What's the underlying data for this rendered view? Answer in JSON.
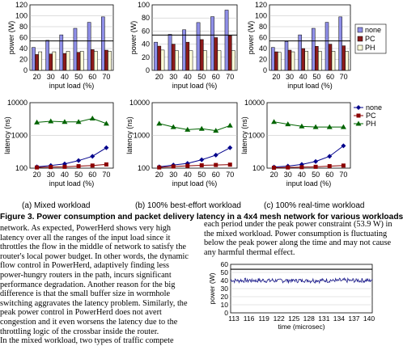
{
  "colors": {
    "none": "#8f8fe8",
    "pc": "#8b1a1a",
    "ph": "#fefcd8"
  },
  "legend": [
    "none",
    "PC",
    "PH"
  ],
  "captions": [
    "(a) Mixed workload",
    "(b) 100% best-effort workload",
    "(c) 100% real-time workload"
  ],
  "figure_caption": "Figure 3. Power consumption and packet delivery latency in a 4x4 mesh network for various workloads",
  "left_text": [
    "network. As expected, PowerHerd shows very high",
    "latency over all the ranges of the input load since it",
    "throttles the flow in the middle of network to satisfy the",
    "router's local power budget. In other words, the dynamic",
    "flow control in PowerHerd, adaptively finding less",
    "power-hungry routers in the path, incurs significant",
    "performance degradation. Another reason for the big",
    "difference is that the small buffer size in wormhole",
    "switching aggravates the latency problem. Similarly, the",
    "peak power control in PowerHerd does not avert",
    "congestion and it even worsens the latency due to the",
    "throttling logic of the crossbar inside the router.",
    "   In the mixed workload, two types of traffic compete"
  ],
  "right_text": [
    "each period under the peak power constraint (53.9 W) in",
    "the mixed workload. Power consumption is fluctuating",
    "below the peak power along the time and may not cause",
    "any harmful thermal effect."
  ],
  "chart_data": [
    {
      "type": "bar",
      "title": "",
      "xlabel": "input load (%)",
      "ylabel": "power (W)",
      "categories": [
        "20",
        "30",
        "40",
        "50",
        "60",
        "70"
      ],
      "ylim": [
        0,
        120
      ],
      "yticks": [
        "0",
        "20",
        "40",
        "60",
        "80",
        "100",
        "120"
      ],
      "hline": 53.9,
      "series": [
        {
          "name": "none",
          "values": [
            42,
            55,
            65,
            77,
            88,
            98
          ]
        },
        {
          "name": "PC",
          "values": [
            29,
            30,
            31,
            33,
            38,
            37
          ]
        },
        {
          "name": "PH",
          "values": [
            34,
            34,
            35,
            35,
            35,
            35
          ]
        }
      ]
    },
    {
      "type": "bar",
      "title": "",
      "xlabel": "input load (%)",
      "ylabel": "power (W)",
      "categories": [
        "20",
        "30",
        "40",
        "50",
        "60",
        "70"
      ],
      "ylim": [
        0,
        100
      ],
      "yticks": [
        "0",
        "20",
        "40",
        "60",
        "80",
        "100"
      ],
      "hline": 53.9,
      "series": [
        {
          "name": "none",
          "values": [
            43,
            55,
            62,
            73,
            82,
            92
          ]
        },
        {
          "name": "PC",
          "values": [
            37,
            40,
            43,
            47,
            50,
            53
          ]
        },
        {
          "name": "PH",
          "values": [
            31,
            30,
            30,
            30,
            30,
            30
          ]
        }
      ]
    },
    {
      "type": "bar",
      "title": "",
      "xlabel": "input load (%)",
      "ylabel": "power (W)",
      "categories": [
        "20",
        "30",
        "40",
        "50",
        "60",
        "70"
      ],
      "ylim": [
        0,
        120
      ],
      "yticks": [
        "0",
        "20",
        "40",
        "60",
        "80",
        "100",
        "120"
      ],
      "hline": 53.9,
      "legend": [
        "none",
        "PC",
        "PH"
      ],
      "series": [
        {
          "name": "none",
          "values": [
            42,
            53,
            65,
            77,
            88,
            98
          ]
        },
        {
          "name": "PC",
          "values": [
            34,
            37,
            40,
            44,
            48,
            45
          ]
        },
        {
          "name": "PH",
          "values": [
            33,
            34,
            35,
            35,
            35,
            35
          ]
        }
      ]
    },
    {
      "type": "line",
      "xlabel": "input load (%)",
      "ylabel": "latency (ns)",
      "log_y": true,
      "categories": [
        "20",
        "30",
        "40",
        "50",
        "60",
        "70"
      ],
      "ylim": [
        100,
        10000
      ],
      "yticks": [
        "100",
        "1000",
        "10000"
      ],
      "series": [
        {
          "name": "none",
          "values": [
            110,
            120,
            135,
            170,
            230,
            420
          ]
        },
        {
          "name": "PC",
          "values": [
            105,
            108,
            110,
            115,
            120,
            130
          ]
        },
        {
          "name": "PH",
          "values": [
            2500,
            2700,
            2600,
            2600,
            3300,
            2300
          ]
        }
      ]
    },
    {
      "type": "line",
      "xlabel": "input load (%)",
      "ylabel": "latency (ns)",
      "log_y": true,
      "categories": [
        "20",
        "30",
        "40",
        "50",
        "60",
        "70"
      ],
      "ylim": [
        100,
        10000
      ],
      "yticks": [
        "100",
        "1000",
        "10000"
      ],
      "series": [
        {
          "name": "none",
          "values": [
            110,
            125,
            140,
            180,
            250,
            420
          ]
        },
        {
          "name": "PC",
          "values": [
            105,
            112,
            118,
            122,
            125,
            128
          ]
        },
        {
          "name": "PH",
          "values": [
            2300,
            1800,
            1500,
            1600,
            1400,
            2000
          ]
        }
      ]
    },
    {
      "type": "line",
      "xlabel": "input load (%)",
      "ylabel": "latency (ns)",
      "log_y": true,
      "categories": [
        "20",
        "30",
        "40",
        "50",
        "60",
        "70"
      ],
      "ylim": [
        100,
        10000
      ],
      "yticks": [
        "100",
        "1000",
        "10000"
      ],
      "legend": [
        "none",
        "PC",
        "PH"
      ],
      "series": [
        {
          "name": "none",
          "values": [
            108,
            115,
            130,
            160,
            230,
            480
          ]
        },
        {
          "name": "PC",
          "values": [
            103,
            105,
            107,
            110,
            115,
            120
          ]
        },
        {
          "name": "PH",
          "values": [
            2600,
            2200,
            1900,
            1800,
            1800,
            1800
          ]
        }
      ]
    },
    {
      "type": "line",
      "xlabel": "time (microsec)",
      "ylabel": "power (W)",
      "ylim": [
        0,
        60
      ],
      "yticks": [
        "0",
        "10",
        "20",
        "30",
        "40",
        "50",
        "60"
      ],
      "xticks": [
        "113",
        "116",
        "119",
        "122",
        "125",
        "128",
        "131",
        "134",
        "137",
        "140"
      ],
      "hline": 53.9,
      "mean": 40,
      "amplitude": 2.5
    }
  ]
}
